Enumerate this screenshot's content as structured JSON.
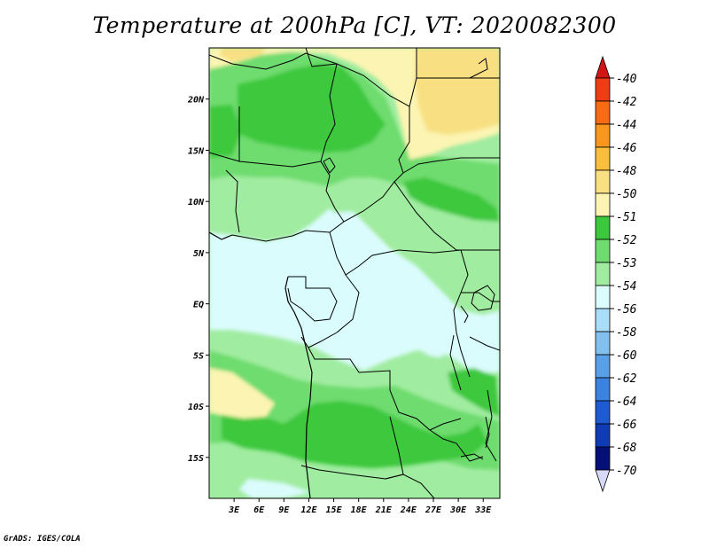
{
  "title": "Temperature at 200hPa [C], VT: 2020082300",
  "credit": "GrADS: IGES/COLA",
  "map": {
    "lon_range": [
      0,
      35
    ],
    "lat_range": [
      -19,
      25
    ],
    "lon_ticks": [
      {
        "value": 3,
        "label": "3E"
      },
      {
        "value": 6,
        "label": "6E"
      },
      {
        "value": 9,
        "label": "9E"
      },
      {
        "value": 12,
        "label": "12E"
      },
      {
        "value": 15,
        "label": "15E"
      },
      {
        "value": 18,
        "label": "18E"
      },
      {
        "value": 21,
        "label": "21E"
      },
      {
        "value": 24,
        "label": "24E"
      },
      {
        "value": 27,
        "label": "27E"
      },
      {
        "value": 30,
        "label": "30E"
      },
      {
        "value": 33,
        "label": "33E"
      }
    ],
    "lat_ticks": [
      {
        "value": 20,
        "label": "20N"
      },
      {
        "value": 15,
        "label": "15N"
      },
      {
        "value": 10,
        "label": "10N"
      },
      {
        "value": 5,
        "label": "5N"
      },
      {
        "value": 0,
        "label": "EQ"
      },
      {
        "value": -5,
        "label": "5S"
      },
      {
        "value": -10,
        "label": "10S"
      },
      {
        "value": -15,
        "label": "15S"
      }
    ]
  },
  "colorbar": {
    "levels": [
      {
        "label": "-40",
        "color": "#e0141c"
      },
      {
        "label": "-42",
        "color": "#f03c14"
      },
      {
        "label": "-44",
        "color": "#f86a14"
      },
      {
        "label": "-46",
        "color": "#f8961e"
      },
      {
        "label": "-48",
        "color": "#f8be3c"
      },
      {
        "label": "-50",
        "color": "#f8e082"
      },
      {
        "label": "-51",
        "color": "#fcf4b2"
      },
      {
        "label": "-52",
        "color": "#3cc83c"
      },
      {
        "label": "-53",
        "color": "#6edc6e"
      },
      {
        "label": "-54",
        "color": "#a0eca0"
      },
      {
        "label": "-56",
        "color": "#dafcfc"
      },
      {
        "label": "-58",
        "color": "#aaddf8"
      },
      {
        "label": "-60",
        "color": "#82c0f0"
      },
      {
        "label": "-62",
        "color": "#5aa0e8"
      },
      {
        "label": "-64",
        "color": "#3c82e0"
      },
      {
        "label": "-66",
        "color": "#1e5ad2"
      },
      {
        "label": "-68",
        "color": "#0f3cb4"
      },
      {
        "label": "-70",
        "color": "#050f78"
      }
    ],
    "over_color": "#d21414",
    "under_color": "#d8d8f8"
  }
}
